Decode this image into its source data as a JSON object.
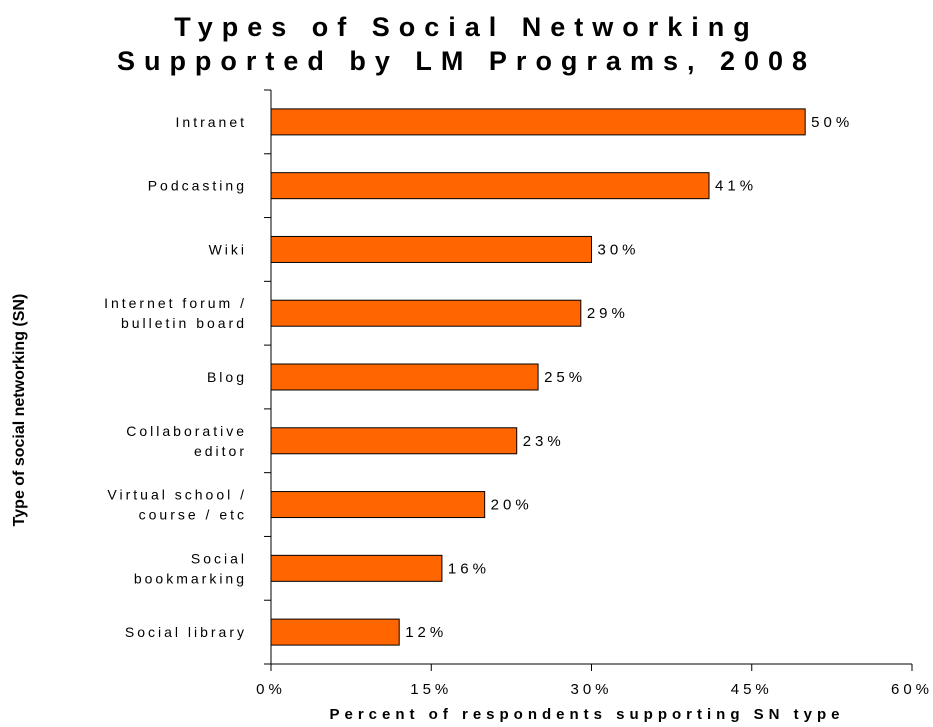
{
  "chart_data": {
    "type": "bar",
    "orientation": "horizontal",
    "title_lines": [
      "Types of Social Networking",
      "Supported by LM Programs, 2008"
    ],
    "xlabel": "Percent of respondents supporting SN type",
    "ylabel": "Type of social networking (SN)",
    "categories": [
      [
        "Intranet"
      ],
      [
        "Podcasting"
      ],
      [
        "Wiki"
      ],
      [
        "Internet forum /",
        "bulletin board"
      ],
      [
        "Blog"
      ],
      [
        "Collaborative",
        "editor"
      ],
      [
        "Virtual school /",
        "course / etc"
      ],
      [
        "Social",
        "bookmarking"
      ],
      [
        "Social library"
      ]
    ],
    "values": [
      50,
      41,
      30,
      29,
      25,
      23,
      20,
      16,
      12
    ],
    "value_labels": [
      "50%",
      "41%",
      "30%",
      "29%",
      "25%",
      "23%",
      "20%",
      "16%",
      "12%"
    ],
    "xlim": [
      0,
      60
    ],
    "xticks": [
      0,
      15,
      30,
      45,
      60
    ],
    "xtick_labels": [
      "0%",
      "15%",
      "30%",
      "45%",
      "60%"
    ],
    "bar_color": "#FF6600",
    "grid": false
  }
}
